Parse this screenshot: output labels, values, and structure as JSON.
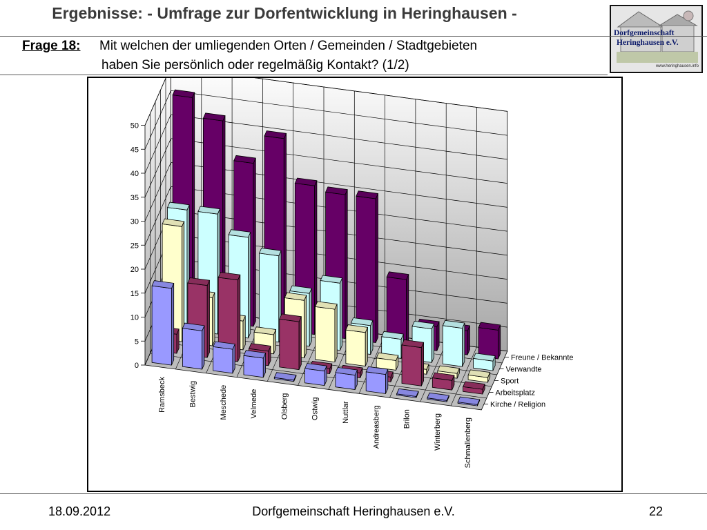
{
  "header": {
    "title": "Ergebnisse: - Umfrage zur Dorfentwicklung in Heringhausen -",
    "question_label": "Frage 18:",
    "question_line1": "Mit welchen der umliegenden Orten / Gemeinden / Stadtgebieten",
    "question_line2": "haben Sie persönlich oder regelmäßig Kontakt? (1/2)"
  },
  "logo": {
    "line1": "Dorfgemeinschaft",
    "line2": "Heringhausen e.V.",
    "url": "www.heringhausen.info"
  },
  "footer": {
    "date": "18.09.2012",
    "organization": "Dorfgemeinschaft Heringhausen e.V.",
    "page": "22"
  },
  "chart_data": {
    "type": "bar",
    "subtype": "3d-column-grouped",
    "categories": [
      "Ramsbeck",
      "Bestwig",
      "Meschede",
      "Velmede",
      "Olsberg",
      "Ostwig",
      "Nuttlar",
      "Andreasberg",
      "Brilon",
      "Winterberg",
      "Schmallenberg"
    ],
    "series": [
      {
        "name": "Kirche / Religion",
        "color": "#9999ff",
        "values": [
          16,
          8,
          5,
          4,
          0,
          3,
          3,
          4,
          0,
          0,
          0
        ]
      },
      {
        "name": "Arbeitsplatz",
        "color": "#993366",
        "values": [
          4,
          15,
          17,
          3,
          10,
          1,
          1,
          1,
          8,
          2,
          1
        ]
      },
      {
        "name": "Sport",
        "color": "#ffffcc",
        "values": [
          24,
          10,
          6,
          4,
          12,
          11,
          7,
          2,
          1,
          1,
          1
        ]
      },
      {
        "name": "Verwandte",
        "color": "#ccffff",
        "values": [
          25,
          25,
          21,
          18,
          11,
          14,
          6,
          4,
          7,
          8,
          2
        ]
      },
      {
        "name": "Freune / Bekannte",
        "color": "#660066",
        "values": [
          46,
          42,
          34,
          40,
          31,
          30,
          30,
          14,
          5,
          5,
          6
        ]
      }
    ],
    "ylim": [
      0,
      50
    ],
    "yticks": [
      0,
      5,
      10,
      15,
      20,
      25,
      30,
      35,
      40,
      45,
      50
    ],
    "grid": true,
    "legend": "series labels along depth axis (right)"
  }
}
